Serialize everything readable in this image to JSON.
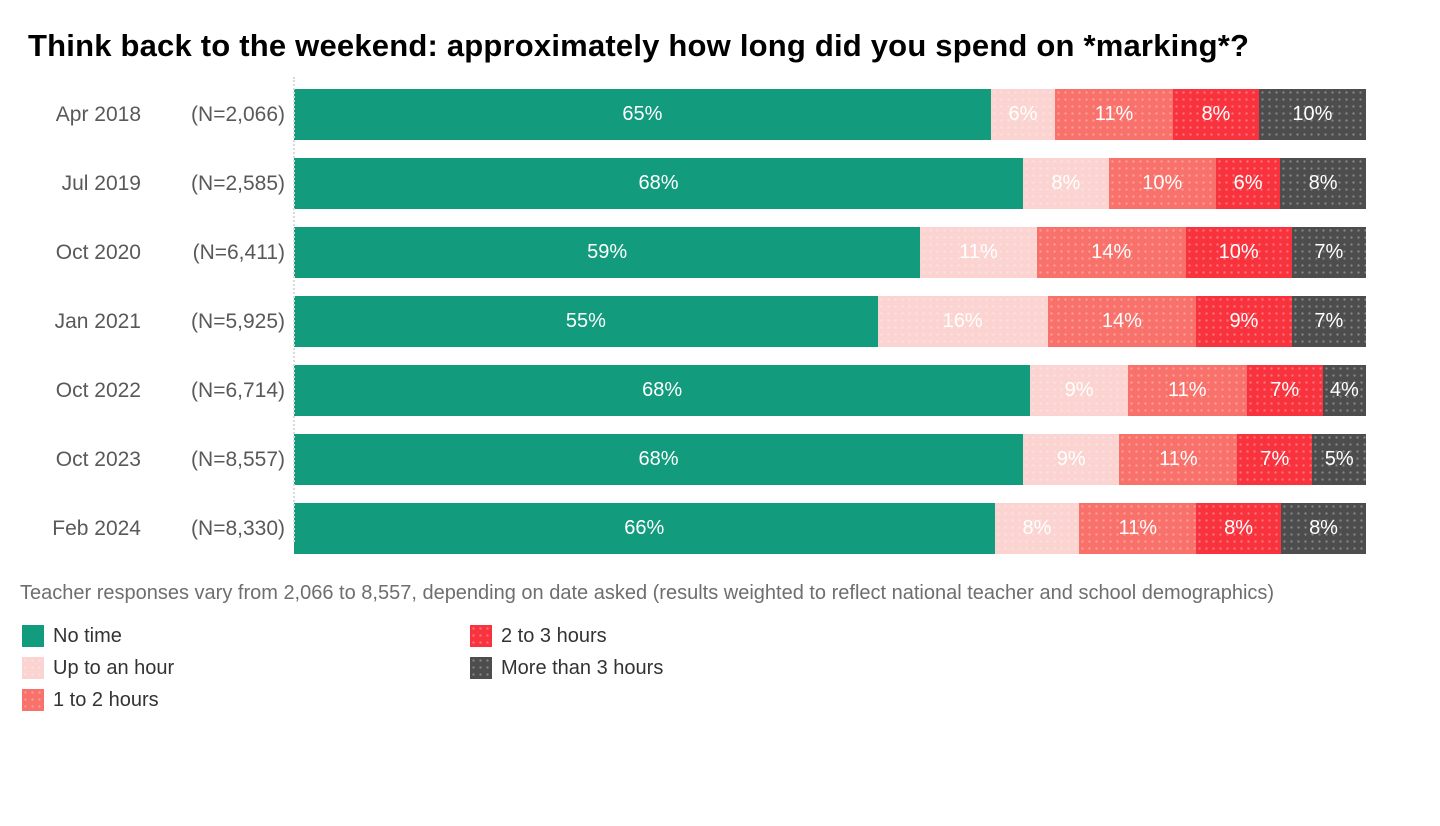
{
  "title": "Think back to the weekend: approximately how long did you spend on *marking*?",
  "footnote": "Teacher responses vary from 2,066 to 8,557, depending on date asked (results weighted to reflect national teacher and school demographics)",
  "chart_data": {
    "type": "bar",
    "orientation": "horizontal",
    "stacked": true,
    "value_suffix": "%",
    "legend_position": "bottom",
    "categories": [
      "Apr 2018",
      "Jul 2019",
      "Oct 2020",
      "Jan 2021",
      "Oct 2022",
      "Oct 2023",
      "Feb 2024"
    ],
    "sample_sizes": [
      "(N=2,066)",
      "(N=2,585)",
      "(N=6,411)",
      "(N=5,925)",
      "(N=6,714)",
      "(N=8,557)",
      "(N=8,330)"
    ],
    "series": [
      {
        "name": "No time",
        "color": "#129b7d",
        "values": [
          65,
          68,
          59,
          55,
          68,
          68,
          66
        ]
      },
      {
        "name": "Up to an hour",
        "color": "#fbd4d1",
        "values": [
          6,
          8,
          11,
          16,
          9,
          9,
          8
        ]
      },
      {
        "name": "1 to 2 hours",
        "color": "#f9716b",
        "values": [
          11,
          10,
          14,
          14,
          11,
          11,
          11
        ]
      },
      {
        "name": "2 to 3 hours",
        "color": "#f9333e",
        "values": [
          8,
          6,
          10,
          9,
          7,
          7,
          8
        ]
      },
      {
        "name": "More than 3 hours",
        "color": "#4d4d4d",
        "values": [
          10,
          8,
          7,
          7,
          4,
          5,
          8
        ]
      }
    ]
  }
}
